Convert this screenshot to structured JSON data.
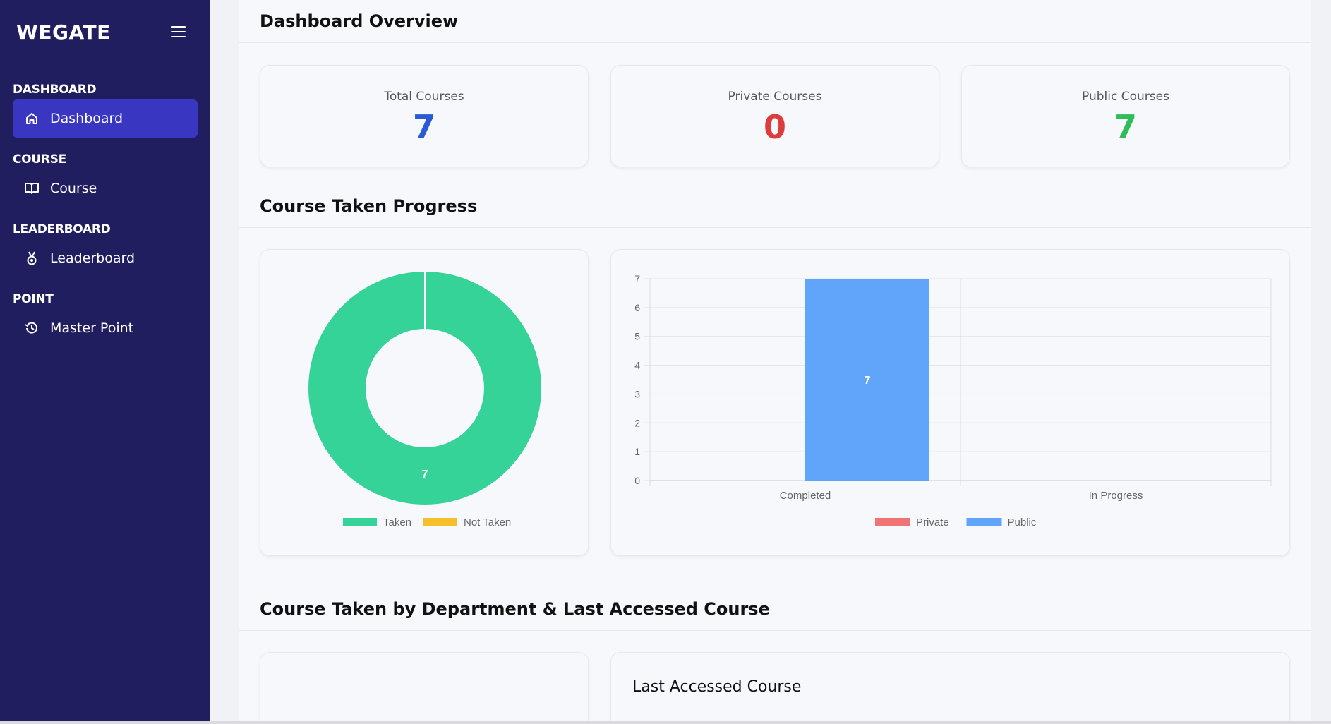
{
  "brand": {
    "name": "WEGATE",
    "menu_icon": "hamburger-icon"
  },
  "sidebar": {
    "sections": [
      {
        "title": "DASHBOARD",
        "item": {
          "label": "Dashboard",
          "icon": "home-icon",
          "active": true
        }
      },
      {
        "title": "COURSE",
        "item": {
          "label": "Course",
          "icon": "book-icon",
          "active": false
        }
      },
      {
        "title": "LEADERBOARD",
        "item": {
          "label": "Leaderboard",
          "icon": "medal-icon",
          "active": false
        }
      },
      {
        "title": "POINT",
        "item": {
          "label": "Master Point",
          "icon": "history-icon",
          "active": false
        }
      }
    ]
  },
  "header": {
    "title": "Dashboard Overview"
  },
  "stats": [
    {
      "label": "Total Courses",
      "value": "7",
      "color": "#2a5bd7"
    },
    {
      "label": "Private Courses",
      "value": "0",
      "color": "#dc3c3c"
    },
    {
      "label": "Public Courses",
      "value": "7",
      "color": "#2fbd5a"
    }
  ],
  "progress_section": {
    "title": "Course Taken Progress"
  },
  "department_section": {
    "title": "Course Taken by Department & Last Accessed Course"
  },
  "last_accessed": {
    "title": "Last Accessed Course"
  },
  "chart_data": [
    {
      "type": "pie",
      "labels": [
        "Taken",
        "Not Taken"
      ],
      "values": [
        7,
        0
      ],
      "colors": [
        "#36d399",
        "#f5c02a"
      ],
      "data_labels": [
        "7"
      ],
      "legend": "bottom"
    },
    {
      "type": "bar",
      "categories": [
        "Completed",
        "In Progress"
      ],
      "series": [
        {
          "name": "Private",
          "values": [
            0,
            0
          ],
          "color": "#f07474"
        },
        {
          "name": "Public",
          "values": [
            7,
            0
          ],
          "color": "#60a5fa"
        }
      ],
      "data_labels": [
        "7"
      ],
      "yticks": [
        "0",
        "1",
        "2",
        "3",
        "4",
        "5",
        "6",
        "7"
      ],
      "ylim": [
        0,
        7
      ],
      "grid": true,
      "legend": "bottom"
    }
  ]
}
